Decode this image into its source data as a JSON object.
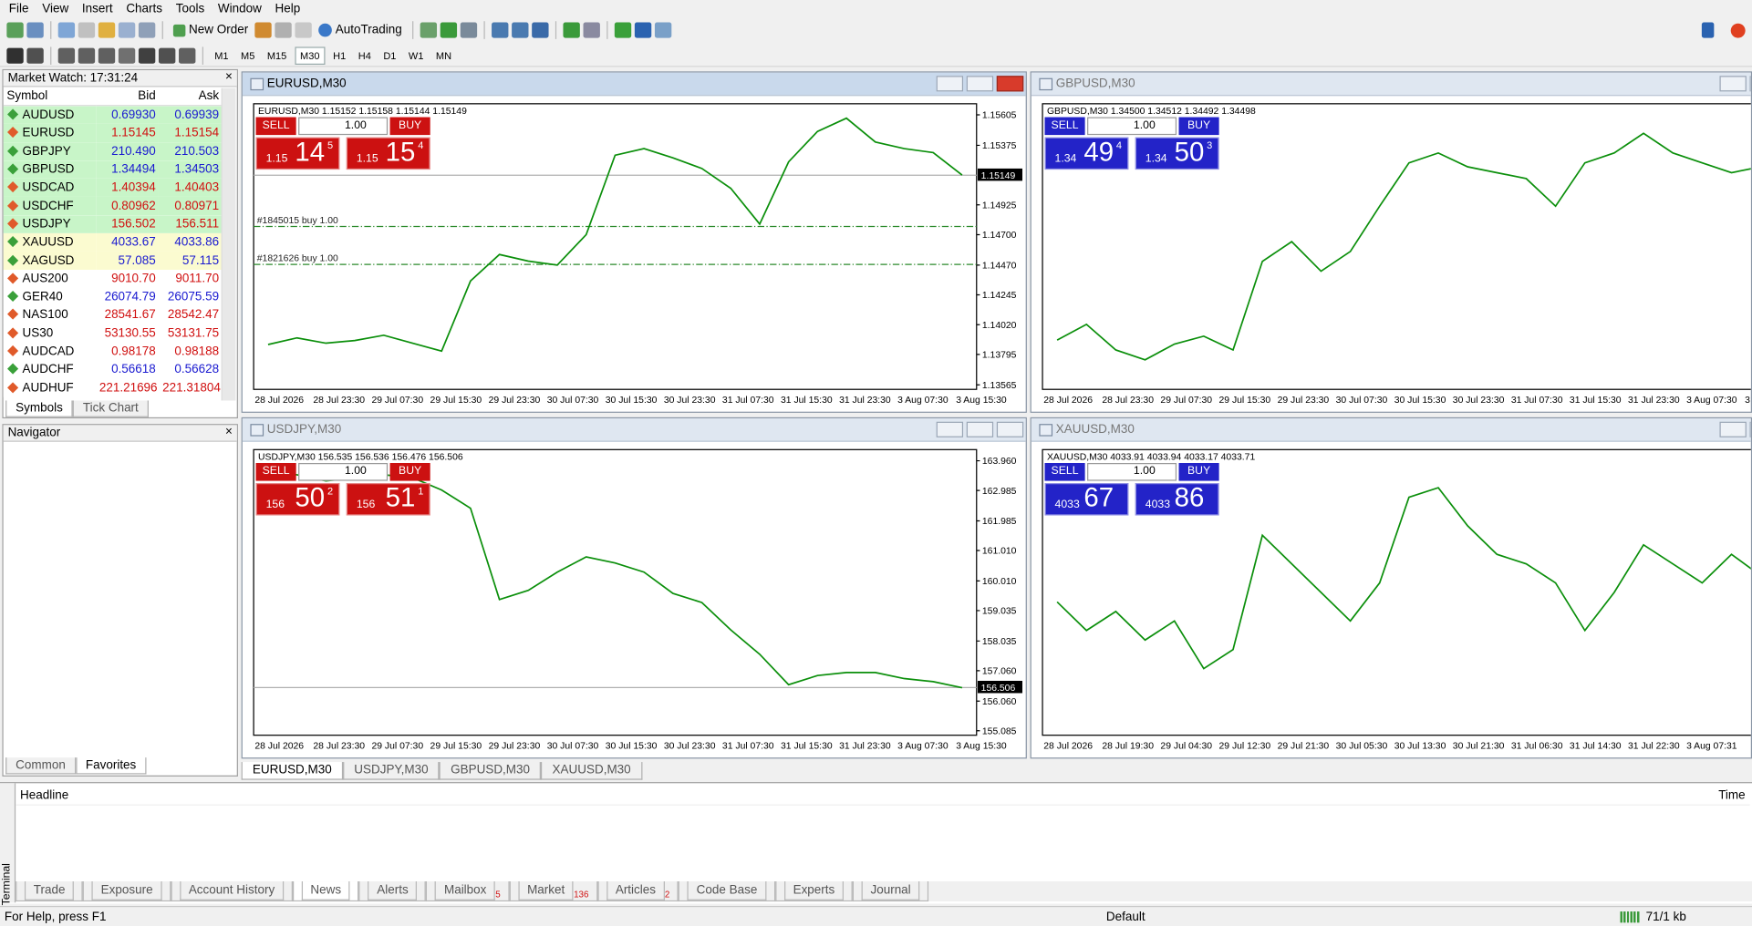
{
  "menu": [
    "File",
    "View",
    "Insert",
    "Charts",
    "Tools",
    "Window",
    "Help"
  ],
  "toolbar": {
    "new_order": "New Order",
    "autotrading": "AutoTrading",
    "timeframes": [
      "M1",
      "M5",
      "M15",
      "M30",
      "H1",
      "H4",
      "D1",
      "W1",
      "MN"
    ]
  },
  "market_watch": {
    "title": "Market Watch: 17:31:24",
    "columns": [
      "Symbol",
      "Bid",
      "Ask"
    ],
    "rows": [
      {
        "symbol": "AUDUSD",
        "bid": "0.69930",
        "ask": "0.69939",
        "color": "#1a1ad0",
        "bg": "#c8f5c8"
      },
      {
        "symbol": "EURUSD",
        "bid": "1.15145",
        "ask": "1.15154",
        "color": "#d01010",
        "bg": "#c8f5c8"
      },
      {
        "symbol": "GBPJPY",
        "bid": "210.490",
        "ask": "210.503",
        "color": "#1a1ad0",
        "bg": "#c8f5c8"
      },
      {
        "symbol": "GBPUSD",
        "bid": "1.34494",
        "ask": "1.34503",
        "color": "#1a1ad0",
        "bg": "#c8f5c8"
      },
      {
        "symbol": "USDCAD",
        "bid": "1.40394",
        "ask": "1.40403",
        "color": "#d01010",
        "bg": "#c8f5c8"
      },
      {
        "symbol": "USDCHF",
        "bid": "0.80962",
        "ask": "0.80971",
        "color": "#d01010",
        "bg": "#c8f5c8"
      },
      {
        "symbol": "USDJPY",
        "bid": "156.502",
        "ask": "156.511",
        "color": "#d01010",
        "bg": "#c8f5c8"
      },
      {
        "symbol": "XAUUSD",
        "bid": "4033.67",
        "ask": "4033.86",
        "color": "#1a1ad0",
        "bg": "#fbfbd0"
      },
      {
        "symbol": "XAGUSD",
        "bid": "57.085",
        "ask": "57.115",
        "color": "#1a1ad0",
        "bg": "#fbfbd0"
      },
      {
        "symbol": "AUS200",
        "bid": "9010.70",
        "ask": "9011.70",
        "color": "#d01010",
        "bg": "#ffffff"
      },
      {
        "symbol": "GER40",
        "bid": "26074.79",
        "ask": "26075.59",
        "color": "#1a1ad0",
        "bg": "#ffffff"
      },
      {
        "symbol": "NAS100",
        "bid": "28541.67",
        "ask": "28542.47",
        "color": "#d01010",
        "bg": "#ffffff"
      },
      {
        "symbol": "US30",
        "bid": "53130.55",
        "ask": "53131.75",
        "color": "#d01010",
        "bg": "#ffffff"
      },
      {
        "symbol": "AUDCAD",
        "bid": "0.98178",
        "ask": "0.98188",
        "color": "#d01010",
        "bg": "#ffffff"
      },
      {
        "symbol": "AUDCHF",
        "bid": "0.56618",
        "ask": "0.56628",
        "color": "#1a1ad0",
        "bg": "#ffffff"
      },
      {
        "symbol": "AUDHUF",
        "bid": "221.21696",
        "ask": "221.31804",
        "color": "#d01010",
        "bg": "#ffffff"
      }
    ],
    "tabs": [
      "Symbols",
      "Tick Chart"
    ]
  },
  "navigator": {
    "title": "Navigator",
    "tabs": [
      "Common",
      "Favorites"
    ]
  },
  "charts": [
    {
      "window_title": "EURUSD,M30",
      "header": "EURUSD,M30  1.15152 1.15158 1.15144 1.15149",
      "panel_color": "#cc1111",
      "line_color": "#0b8f0b",
      "trade": {
        "sell": "SELL",
        "buy": "BUY",
        "lots": "1.00",
        "sell_price": [
          "1.15",
          "14",
          "5"
        ],
        "buy_price": [
          "1.15",
          "15",
          "4"
        ]
      },
      "ylim": [
        1.13531,
        1.15689
      ],
      "yticks": [
        1.15605,
        1.15375,
        1.14925,
        {
          "value": 1.147,
          "label": "1.14700"
        },
        {
          "value": 1.1447,
          "label": "1.14470"
        },
        1.14245,
        {
          "value": 1.1402,
          "label": "1.14020"
        },
        1.13795,
        1.13565
      ],
      "last": 1.15149,
      "orders": [
        {
          "label": "#1845015 buy 1.00",
          "price": 1.14762
        },
        {
          "label": "#1821626 buy 1.00",
          "price": 1.14475
        }
      ],
      "x_labels": [
        "28 Jul 2026",
        "28 Jul 23:30",
        "29 Jul 07:30",
        "29 Jul 15:30",
        "29 Jul 23:30",
        "30 Jul 07:30",
        "30 Jul 15:30",
        "30 Jul 23:30",
        "31 Jul 07:30",
        "31 Jul 15:30",
        "31 Jul 23:30",
        "3 Aug 07:30",
        "3 Aug 15:30"
      ],
      "closes": [
        1.1387,
        1.1392,
        1.1388,
        1.139,
        1.1394,
        1.1388,
        1.1382,
        1.1435,
        1.1455,
        1.145,
        1.1447,
        1.147,
        1.153,
        1.1535,
        1.1528,
        1.152,
        1.1505,
        1.1478,
        1.1525,
        1.1548,
        1.1558,
        1.154,
        1.1535,
        1.1532,
        1.1515
      ]
    },
    {
      "window_title": "GBPUSD,M30",
      "header": "GBPUSD,M30  1.34500 1.34512 1.34492 1.34498",
      "panel_color": "#2323c8",
      "line_color": "#0b8f0b",
      "trade": {
        "sell": "SELL",
        "buy": "BUY",
        "lots": "1.00",
        "sell_price": [
          "1.34",
          "49",
          "4"
        ],
        "buy_price": [
          "1.34",
          "50",
          "3"
        ]
      },
      "ylim": [
        1.3385,
        1.353
      ],
      "x_labels": [
        "28 Jul 2026",
        "28 Jul 23:30",
        "29 Jul 07:30",
        "29 Jul 15:30",
        "29 Jul 23:30",
        "30 Jul 07:30",
        "30 Jul 15:30",
        "30 Jul 23:30",
        "31 Jul 07:30",
        "31 Jul 15:30",
        "31 Jul 23:30",
        "3 Aug 07:30",
        "3"
      ],
      "closes": [
        1.341,
        1.3418,
        1.3405,
        1.34,
        1.3408,
        1.3412,
        1.3405,
        1.345,
        1.346,
        1.3445,
        1.3455,
        1.3478,
        1.35,
        1.3505,
        1.3498,
        1.3495,
        1.3492,
        1.3478,
        1.35,
        1.3505,
        1.3515,
        1.3505,
        1.35,
        1.3495,
        1.3498
      ]
    },
    {
      "window_title": "USDJPY,M30",
      "header": "USDJPY,M30  156.535 156.536 156.476 156.506",
      "panel_color": "#cc1111",
      "line_color": "#0b8f0b",
      "trade": {
        "sell": "SELL",
        "buy": "BUY",
        "lots": "1.00",
        "sell_price": [
          "156",
          "50",
          "2"
        ],
        "buy_price": [
          "156",
          "51",
          "1"
        ]
      },
      "ylim": [
        154.938,
        164.327
      ],
      "yticks": [
        {
          "value": 163.96,
          "label": "163.960"
        },
        162.985,
        161.985,
        {
          "value": 161.01,
          "label": "161.010"
        },
        {
          "value": 160.01,
          "label": "160.010"
        },
        159.035,
        158.035,
        {
          "value": 157.06,
          "label": "157.060"
        },
        {
          "value": 156.06,
          "label": "156.060"
        },
        155.085
      ],
      "last": 156.506,
      "x_labels": [
        "28 Jul 2026",
        "28 Jul 23:30",
        "29 Jul 07:30",
        "29 Jul 15:30",
        "29 Jul 23:30",
        "30 Jul 07:30",
        "30 Jul 15:30",
        "30 Jul 23:30",
        "31 Jul 07:30",
        "31 Jul 15:30",
        "31 Jul 23:30",
        "3 Aug 07:30",
        "3 Aug 15:30"
      ],
      "closes": [
        163.6,
        163.5,
        163.3,
        163.4,
        163.5,
        163.4,
        163.0,
        162.4,
        159.4,
        159.7,
        160.3,
        160.8,
        160.6,
        160.3,
        159.6,
        159.3,
        158.4,
        157.6,
        156.6,
        156.9,
        157.0,
        157.0,
        156.8,
        156.7,
        156.5
      ]
    },
    {
      "window_title": "XAUUSD,M30",
      "header": "XAUUSD,M30  4033.91 4033.94 4033.17 4033.71",
      "panel_color": "#2323c8",
      "line_color": "#0b8f0b",
      "trade": {
        "sell": "SELL",
        "buy": "BUY",
        "lots": "1.00",
        "sell_price": [
          "4033",
          "67"
        ],
        "buy_price": [
          "4033",
          "86"
        ]
      },
      "ylim": [
        3950,
        4100
      ],
      "x_labels": [
        "28 Jul 2026",
        "28 Jul 19:30",
        "29 Jul 04:30",
        "29 Jul 12:30",
        "29 Jul 21:30",
        "30 Jul 05:30",
        "30 Jul 13:30",
        "30 Jul 21:30",
        "31 Jul 06:30",
        "31 Jul 14:30",
        "31 Jul 22:30",
        "3 Aug 07:31"
      ],
      "closes": [
        4020,
        4005,
        4015,
        4000,
        4010,
        3985,
        3995,
        4055,
        4040,
        4025,
        4010,
        4030,
        4075,
        4080,
        4060,
        4045,
        4040,
        4030,
        4005,
        4025,
        4050,
        4040,
        4030,
        4045,
        4033.7
      ]
    }
  ],
  "chart_tabs": [
    "EURUSD,M30",
    "USDJPY,M30",
    "GBPUSD,M30",
    "XAUUSD,M30"
  ],
  "terminal": {
    "label": "Terminal",
    "columns": [
      "Headline",
      "Time"
    ],
    "tabs": [
      {
        "label": "Trade"
      },
      {
        "label": "Exposure"
      },
      {
        "label": "Account History"
      },
      {
        "label": "News"
      },
      {
        "label": "Alerts"
      },
      {
        "label": "Mailbox",
        "badge": "5"
      },
      {
        "label": "Market",
        "badge": "136"
      },
      {
        "label": "Articles",
        "badge": "2"
      },
      {
        "label": "Code Base"
      },
      {
        "label": "Experts"
      },
      {
        "label": "Journal"
      }
    ]
  },
  "status": {
    "help": "For Help, press F1",
    "profile": "Default",
    "traffic": "71/1 kb"
  }
}
